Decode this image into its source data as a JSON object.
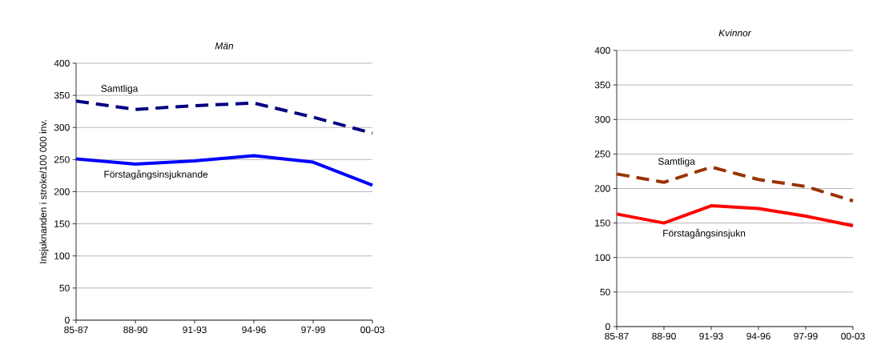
{
  "chart_data": [
    {
      "type": "line",
      "title": "Män",
      "ylabel": "Insjuknanden i stroke/100 000 inv.",
      "categories": [
        "85-87",
        "88-90",
        "91-93",
        "94-96",
        "97-99",
        "00-03"
      ],
      "ylim": [
        0,
        400
      ],
      "yticks": [
        0,
        50,
        100,
        150,
        200,
        250,
        300,
        350,
        400
      ],
      "grid": "y",
      "series": [
        {
          "name": "Samtliga",
          "color": "#000080",
          "line_style": "dashed",
          "values": [
            341,
            328,
            334,
            338,
            316,
            291
          ]
        },
        {
          "name": "Förstagångsinsjuknande",
          "color": "#0000ff",
          "line_style": "solid",
          "values": [
            251,
            243,
            248,
            256,
            246,
            210
          ]
        }
      ]
    },
    {
      "type": "line",
      "title": "Kvinnor",
      "categories": [
        "85-87",
        "88-90",
        "91-93",
        "94-96",
        "97-99",
        "00-03"
      ],
      "ylim": [
        0,
        400
      ],
      "yticks": [
        0,
        50,
        100,
        150,
        200,
        250,
        300,
        350,
        400
      ],
      "grid": "y",
      "series": [
        {
          "name": "Samtliga",
          "color": "#993300",
          "line_style": "dashed",
          "values": [
            221,
            209,
            231,
            213,
            203,
            182
          ]
        },
        {
          "name": "Förstagångsinsjukn",
          "color": "#ff0000",
          "line_style": "solid",
          "values": [
            163,
            150,
            175,
            171,
            160,
            146
          ]
        }
      ]
    }
  ]
}
